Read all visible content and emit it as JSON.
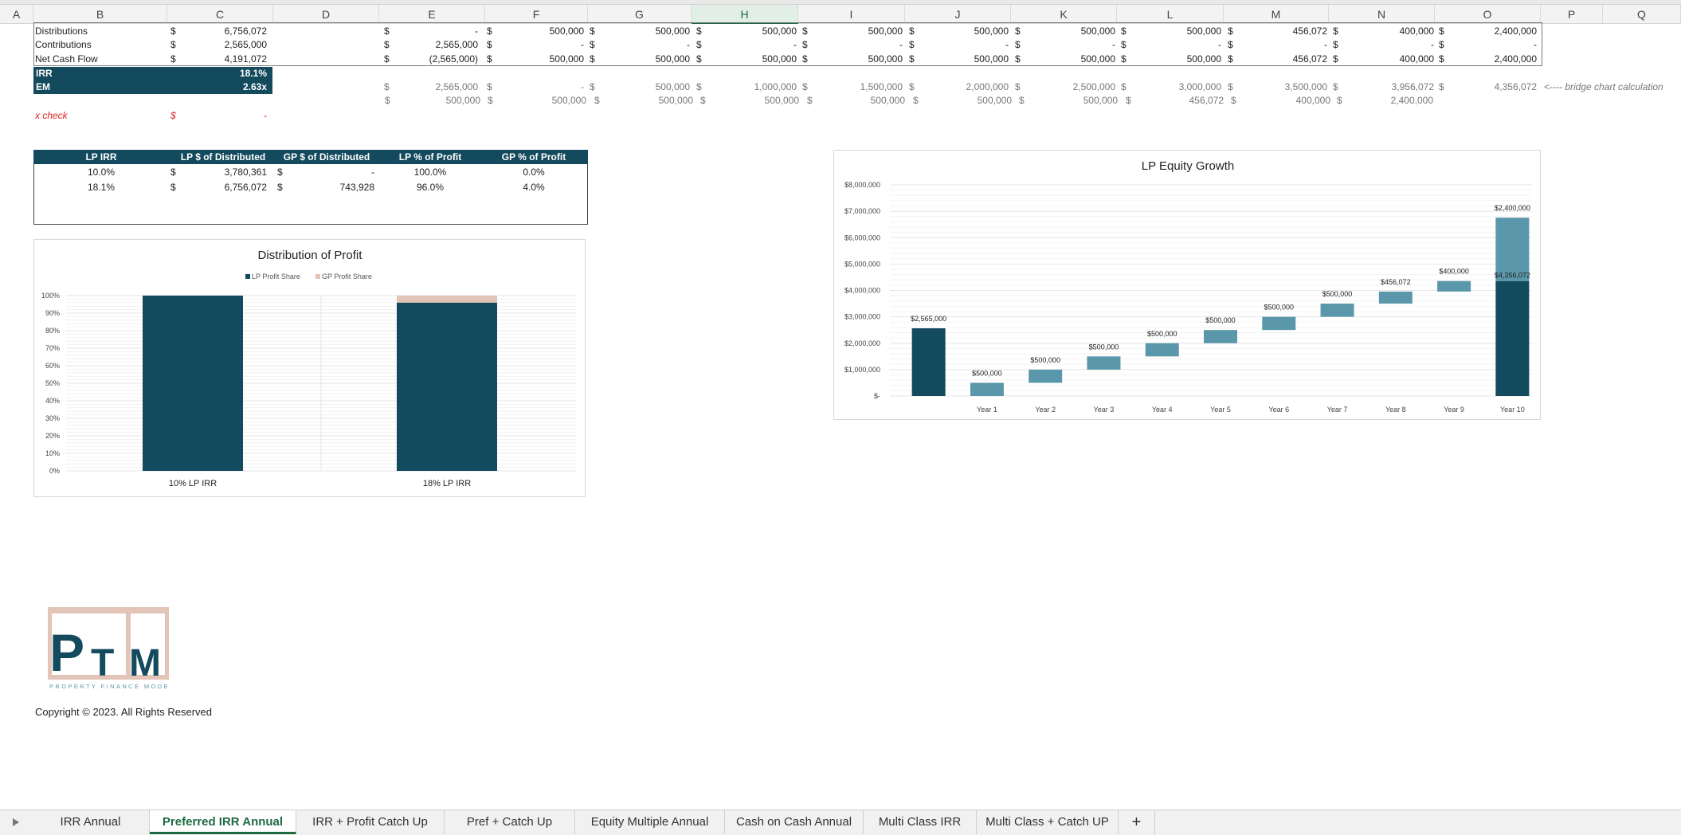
{
  "colors": {
    "accent": "#1d6b41",
    "dark_teal": "#134a5e",
    "mid_teal": "#5b97aa",
    "gp_pink": "#e3c4b8",
    "check_red": "#e02020"
  },
  "columns": [
    "A",
    "B",
    "C",
    "D",
    "E",
    "F",
    "G",
    "H",
    "I",
    "J",
    "K",
    "L",
    "M",
    "N",
    "O",
    "P",
    "Q"
  ],
  "active_column": "H",
  "summary": {
    "distributions_label": "Distributions",
    "contributions_label": "Contributions",
    "netcf_label": "Net Cash Flow",
    "dist_total": "6,756,072",
    "contrib_total": "2,565,000",
    "netcf_total": "4,191,072",
    "irr_label": "IRR",
    "irr_value": "18.1%",
    "em_label": "EM",
    "em_value": "2.63x",
    "check_label": "x check",
    "check_value": "-",
    "currency": "$"
  },
  "rows": {
    "distributions": [
      "-",
      "500,000",
      "500,000",
      "500,000",
      "500,000",
      "500,000",
      "500,000",
      "500,000",
      "456,072",
      "400,000",
      "2,400,000"
    ],
    "contributions": [
      "2,565,000",
      "-",
      "-",
      "-",
      "-",
      "-",
      "-",
      "-",
      "-",
      "-",
      "-"
    ],
    "netcf": [
      "(2,565,000)",
      "500,000",
      "500,000",
      "500,000",
      "500,000",
      "500,000",
      "500,000",
      "500,000",
      "456,072",
      "400,000",
      "2,400,000"
    ],
    "bridge_top": [
      "2,565,000",
      "-",
      "500,000",
      "1,000,000",
      "1,500,000",
      "2,000,000",
      "2,500,000",
      "3,000,000",
      "3,500,000",
      "3,956,072",
      "4,356,072"
    ],
    "bridge_bottom": [
      "500,000",
      "500,000",
      "500,000",
      "500,000",
      "500,000",
      "500,000",
      "500,000",
      "456,072",
      "400,000",
      "2,400,000"
    ],
    "bridge_note": "<---- bridge chart calculation"
  },
  "lp_table": {
    "headers": [
      "LP IRR",
      "LP $ of Distributed",
      "GP $ of Distributed",
      "LP % of Profit",
      "GP % of Profit"
    ],
    "rows": [
      {
        "irr": "10.0%",
        "lp_dist": "3,780,361",
        "gp_dist": "-",
        "lp_pct": "100.0%",
        "gp_pct": "0.0%"
      },
      {
        "irr": "18.1%",
        "lp_dist": "6,756,072",
        "gp_dist": "743,928",
        "lp_pct": "96.0%",
        "gp_pct": "4.0%"
      }
    ]
  },
  "charts": {
    "profit": {
      "title": "Distribution of Profit",
      "legend": [
        "LP Profit Share",
        "GP Profit Share"
      ],
      "yticks": [
        "100%",
        "90%",
        "80%",
        "70%",
        "60%",
        "50%",
        "40%",
        "30%",
        "20%",
        "10%",
        "0%"
      ]
    },
    "equity": {
      "title": "LP Equity Growth",
      "yticks": [
        "$8,000,000",
        "$7,000,000",
        "$6,000,000",
        "$5,000,000",
        "$4,000,000",
        "$3,000,000",
        "$2,000,000",
        "$1,000,000",
        "$-"
      ]
    }
  },
  "chart_data": [
    {
      "type": "bar",
      "title": "Distribution of Profit",
      "categories": [
        "10%  LP IRR",
        "18%  LP IRR"
      ],
      "series": [
        {
          "name": "LP Profit Share",
          "values": [
            100.0,
            96.0
          ]
        },
        {
          "name": "GP Profit Share",
          "values": [
            0.0,
            4.0
          ]
        }
      ],
      "ylim": [
        0,
        100
      ],
      "stacked": true
    },
    {
      "type": "bar",
      "title": "LP Equity Growth",
      "categories": [
        "",
        "Year 1",
        "Year 2",
        "Year 3",
        "Year 4",
        "Year 5",
        "Year 6",
        "Year 7",
        "Year 8",
        "Year 9",
        "Year 10"
      ],
      "bases": [
        0,
        0,
        500000,
        1000000,
        1500000,
        2000000,
        2500000,
        3000000,
        3500000,
        3956072,
        4356072
      ],
      "values": [
        2565000,
        500000,
        500000,
        500000,
        500000,
        500000,
        500000,
        500000,
        456072,
        400000,
        2400000
      ],
      "labels": [
        "$2,565,000",
        "$500,000",
        "$500,000",
        "$500,000",
        "$500,000",
        "$500,000",
        "$500,000",
        "$500,000",
        "$456,072",
        "$400,000",
        "$2,400,000"
      ],
      "total_label": "$4,356,072",
      "ylim": [
        0,
        8000000
      ]
    }
  ],
  "logo": {
    "letters": "PTM",
    "tagline": "PROPERTY FINANCE MODELS"
  },
  "copyright": "Copyright © 2023. All Rights Reserved",
  "tabs": [
    "IRR Annual",
    "Preferred IRR Annual",
    "IRR + Profit Catch Up",
    "Pref + Catch Up",
    "Equity Multiple Annual",
    "Cash on Cash Annual",
    "Multi Class IRR",
    "Multi Class + Catch UP"
  ],
  "active_tab": "Preferred IRR Annual",
  "add_sheet": "+"
}
